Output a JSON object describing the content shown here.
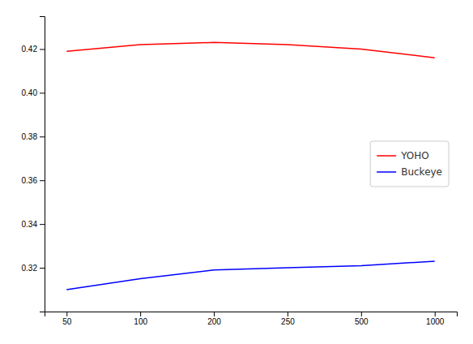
{
  "chart_data": {
    "type": "line",
    "categories": [
      "50",
      "100",
      "200",
      "250",
      "500",
      "1000"
    ],
    "series": [
      {
        "name": "YOHO",
        "color": "#ff0000",
        "values": [
          0.419,
          0.422,
          0.423,
          0.422,
          0.42,
          0.416
        ]
      },
      {
        "name": "Buckeye",
        "color": "#0000ff",
        "values": [
          0.31,
          0.315,
          0.319,
          0.32,
          0.321,
          0.323
        ]
      }
    ],
    "ylim": [
      0.3,
      0.435
    ],
    "yticks": [
      0.32,
      0.34,
      0.36,
      0.38,
      {
        "value": 0.4,
        "label": "0.40"
      },
      0.42
    ],
    "legend": "center right"
  }
}
